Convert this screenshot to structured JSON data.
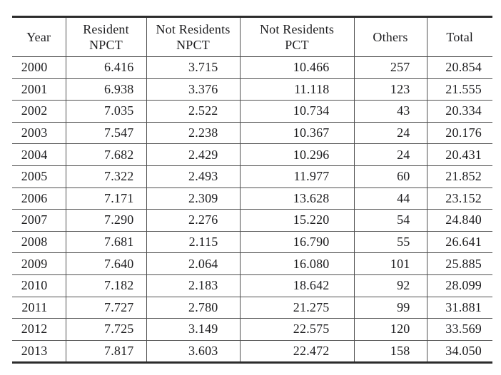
{
  "table": {
    "headers": [
      "Year",
      "Resident\nNPCT",
      "Not Residents\nNPCT",
      "Not Residents\nPCT",
      "Others",
      "Total"
    ],
    "rows": [
      [
        "2000",
        "6.416",
        "3.715",
        "10.466",
        "257",
        "20.854"
      ],
      [
        "2001",
        "6.938",
        "3.376",
        "11.118",
        "123",
        "21.555"
      ],
      [
        "2002",
        "7.035",
        "2.522",
        "10.734",
        "43",
        "20.334"
      ],
      [
        "2003",
        "7.547",
        "2.238",
        "10.367",
        "24",
        "20.176"
      ],
      [
        "2004",
        "7.682",
        "2.429",
        "10.296",
        "24",
        "20.431"
      ],
      [
        "2005",
        "7.322",
        "2.493",
        "11.977",
        "60",
        "21.852"
      ],
      [
        "2006",
        "7.171",
        "2.309",
        "13.628",
        "44",
        "23.152"
      ],
      [
        "2007",
        "7.290",
        "2.276",
        "15.220",
        "54",
        "24.840"
      ],
      [
        "2008",
        "7.681",
        "2.115",
        "16.790",
        "55",
        "26.641"
      ],
      [
        "2009",
        "7.640",
        "2.064",
        "16.080",
        "101",
        "25.885"
      ],
      [
        "2010",
        "7.182",
        "2.183",
        "18.642",
        "92",
        "28.099"
      ],
      [
        "2011",
        "7.727",
        "2.780",
        "21.275",
        "99",
        "31.881"
      ],
      [
        "2012",
        "7.725",
        "3.149",
        "22.575",
        "120",
        "33.569"
      ],
      [
        "2013",
        "7.817",
        "3.603",
        "22.472",
        "158",
        "34.050"
      ]
    ]
  },
  "chart_data": {
    "type": "table",
    "columns": [
      "Year",
      "Resident NPCT",
      "Not Residents NPCT",
      "Not Residents PCT",
      "Others",
      "Total"
    ],
    "rows": [
      [
        "2000",
        "6.416",
        "3.715",
        "10.466",
        "257",
        "20.854"
      ],
      [
        "2001",
        "6.938",
        "3.376",
        "11.118",
        "123",
        "21.555"
      ],
      [
        "2002",
        "7.035",
        "2.522",
        "10.734",
        "43",
        "20.334"
      ],
      [
        "2003",
        "7.547",
        "2.238",
        "10.367",
        "24",
        "20.176"
      ],
      [
        "2004",
        "7.682",
        "2.429",
        "10.296",
        "24",
        "20.431"
      ],
      [
        "2005",
        "7.322",
        "2.493",
        "11.977",
        "60",
        "21.852"
      ],
      [
        "2006",
        "7.171",
        "2.309",
        "13.628",
        "44",
        "23.152"
      ],
      [
        "2007",
        "7.290",
        "2.276",
        "15.220",
        "54",
        "24.840"
      ],
      [
        "2008",
        "7.681",
        "2.115",
        "16.790",
        "55",
        "26.641"
      ],
      [
        "2009",
        "7.640",
        "2.064",
        "16.080",
        "101",
        "25.885"
      ],
      [
        "2010",
        "7.182",
        "2.183",
        "18.642",
        "92",
        "28.099"
      ],
      [
        "2011",
        "7.727",
        "2.780",
        "21.275",
        "99",
        "31.881"
      ],
      [
        "2012",
        "7.725",
        "3.149",
        "22.575",
        "120",
        "33.569"
      ],
      [
        "2013",
        "7.817",
        "3.603",
        "22.472",
        "158",
        "34.050"
      ]
    ]
  },
  "colors": {
    "text": "#1d1d1f",
    "grid_line": "#4f4f4f",
    "outer_rule": "#2c2c2c",
    "background": "#ffffff"
  }
}
